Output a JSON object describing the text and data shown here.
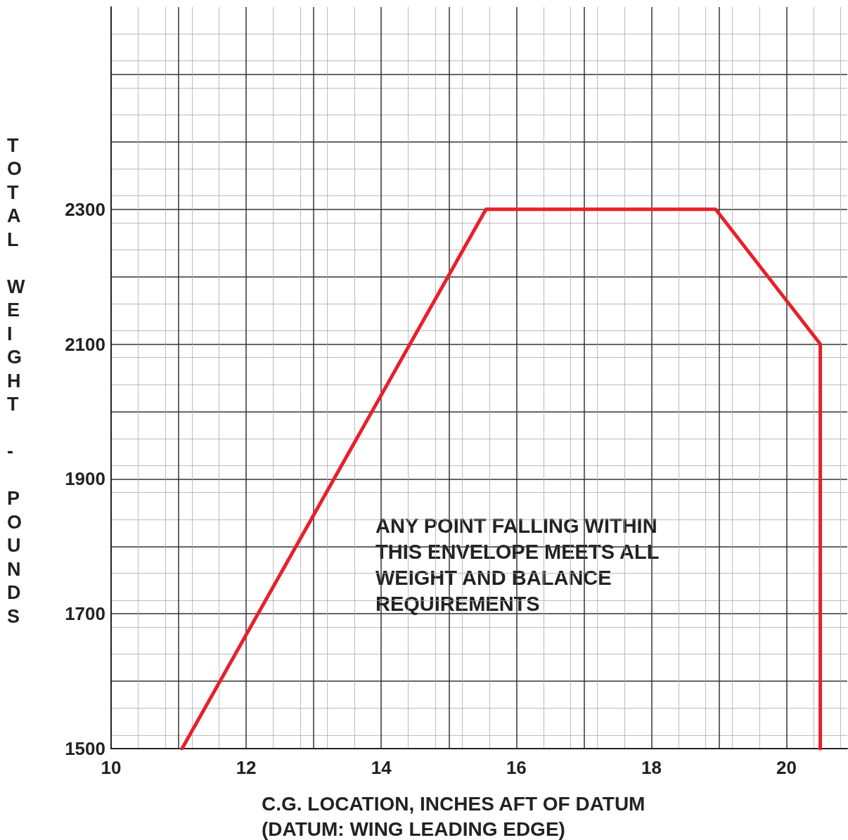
{
  "chart_data": {
    "type": "line",
    "xlabel": "C.G. LOCATION, INCHES AFT OF DATUM\n(DATUM: WING LEADING EDGE)",
    "ylabel": "TOTAL WEIGHT - POUNDS",
    "annotations": [
      "ANY POINT FALLING WITHIN\nTHIS ENVELOPE MEETS ALL\nWEIGHT AND BALANCE\nREQUIREMENTS"
    ],
    "series": [
      {
        "color": "#e8202a",
        "x": [
          11.05,
          15.55,
          18.95,
          20.5,
          20.5
        ],
        "values": [
          1500,
          2300,
          2300,
          2100,
          1500
        ]
      }
    ],
    "xlim": [
      10,
      20.9
    ],
    "xticks": [
      10,
      {
        "value": 11,
        "label": null
      },
      12,
      {
        "value": 13,
        "label": null
      },
      14,
      {
        "value": 15,
        "label": null
      },
      16,
      {
        "value": 17,
        "label": null
      },
      18,
      {
        "value": 19,
        "label": null
      },
      20
    ],
    "ylim": [
      1500,
      2600
    ],
    "yticks": [
      1500,
      {
        "value": 1600,
        "label": null
      },
      1700,
      {
        "value": 1800,
        "label": null
      },
      1900,
      {
        "value": 2000,
        "label": null
      },
      2100,
      {
        "value": 2200,
        "label": null
      },
      2300,
      {
        "value": 2400,
        "label": null
      },
      {
        "value": 2500,
        "label": null
      }
    ],
    "grid": true,
    "marker": "none",
    "line_style": "solid"
  }
}
